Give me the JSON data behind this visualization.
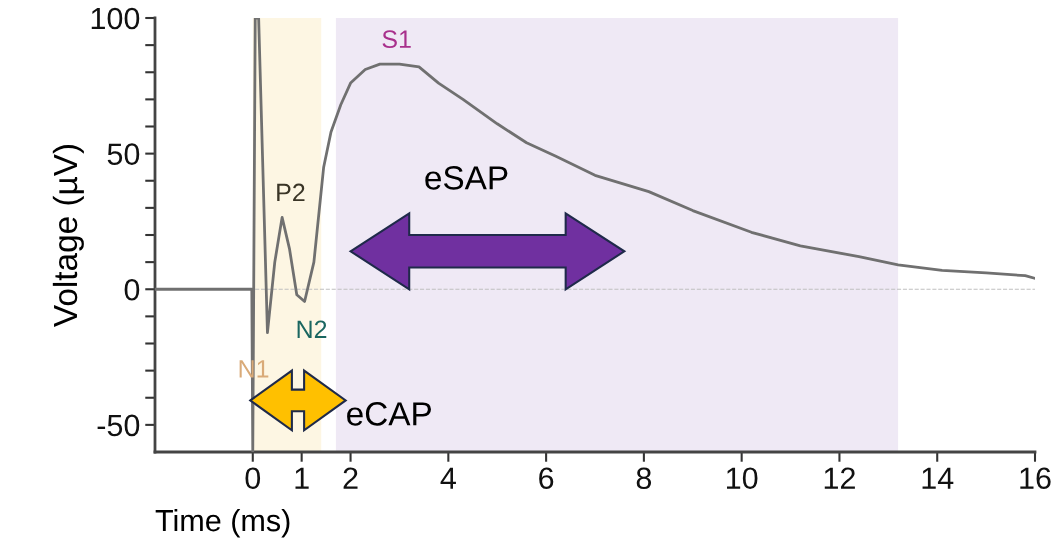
{
  "chart_data": {
    "type": "line",
    "xlabel": "Time (ms)",
    "ylabel": "Voltage (µV)",
    "x": [
      -2,
      -1.5,
      -1,
      -0.5,
      -0.02,
      0,
      0.05,
      0.12,
      0.3,
      0.45,
      0.6,
      0.75,
      0.9,
      1.06,
      1.25,
      1.45,
      1.6,
      1.8,
      2.0,
      2.3,
      2.6,
      3.0,
      3.4,
      3.8,
      4.3,
      5,
      5.6,
      6.2,
      7,
      8.1,
      9,
      10.2,
      11.2,
      12.4,
      13.2,
      14.1,
      15,
      15.8,
      16
    ],
    "series": [
      {
        "color": "#707070",
        "values": [
          0,
          0,
          0,
          0,
          0,
          -60,
          100,
          100,
          -16,
          10,
          26.5,
          15,
          -2,
          -4.5,
          10,
          45,
          58,
          68,
          76,
          81,
          83,
          83,
          82,
          76,
          70,
          61,
          54,
          49,
          42,
          36,
          29,
          21,
          16,
          12,
          9,
          7,
          6,
          5,
          4
        ]
      }
    ],
    "xlim": [
      -2,
      16
    ],
    "ylim": [
      -60,
      100
    ],
    "xticks": [
      0,
      1,
      2,
      4,
      6,
      8,
      10,
      12,
      14,
      16
    ],
    "yticks": [
      {
        "value": -50,
        "label": "-50"
      },
      {
        "value": -40,
        "label": null
      },
      {
        "value": -30,
        "label": null
      },
      {
        "value": -20,
        "label": null
      },
      {
        "value": -10,
        "label": null
      },
      0,
      {
        "value": 10,
        "label": null
      },
      {
        "value": 20,
        "label": null
      },
      {
        "value": 30,
        "label": null
      },
      {
        "value": 40,
        "label": null
      },
      50,
      {
        "value": 60,
        "label": null
      },
      {
        "value": 70,
        "label": null
      },
      {
        "value": 80,
        "label": null
      },
      {
        "value": 90,
        "label": null
      },
      100
    ],
    "ref_lines": [
      {
        "axis": "y",
        "value": 0,
        "color": "#c0c0c0",
        "line_style": "dashed"
      }
    ],
    "bands": [
      {
        "axis": "x",
        "from": 0,
        "to": 1.4,
        "color": "#fdf6e3"
      },
      {
        "axis": "x",
        "from": 1.7,
        "to": 13.2,
        "color": "#efe9f5"
      }
    ],
    "annotations": [
      {
        "text": "S1",
        "x": 3.0,
        "y": 83
      },
      {
        "text": "P2",
        "x": 0.6,
        "y": 26.5
      },
      {
        "text": "N1",
        "x": 0.3,
        "y": -16
      },
      {
        "text": "N2",
        "x": 1.06,
        "y": -4.5
      },
      "eSAP",
      "eCAP"
    ],
    "grid": false,
    "legend": false,
    "marker": "none",
    "line_style": "solid"
  }
}
